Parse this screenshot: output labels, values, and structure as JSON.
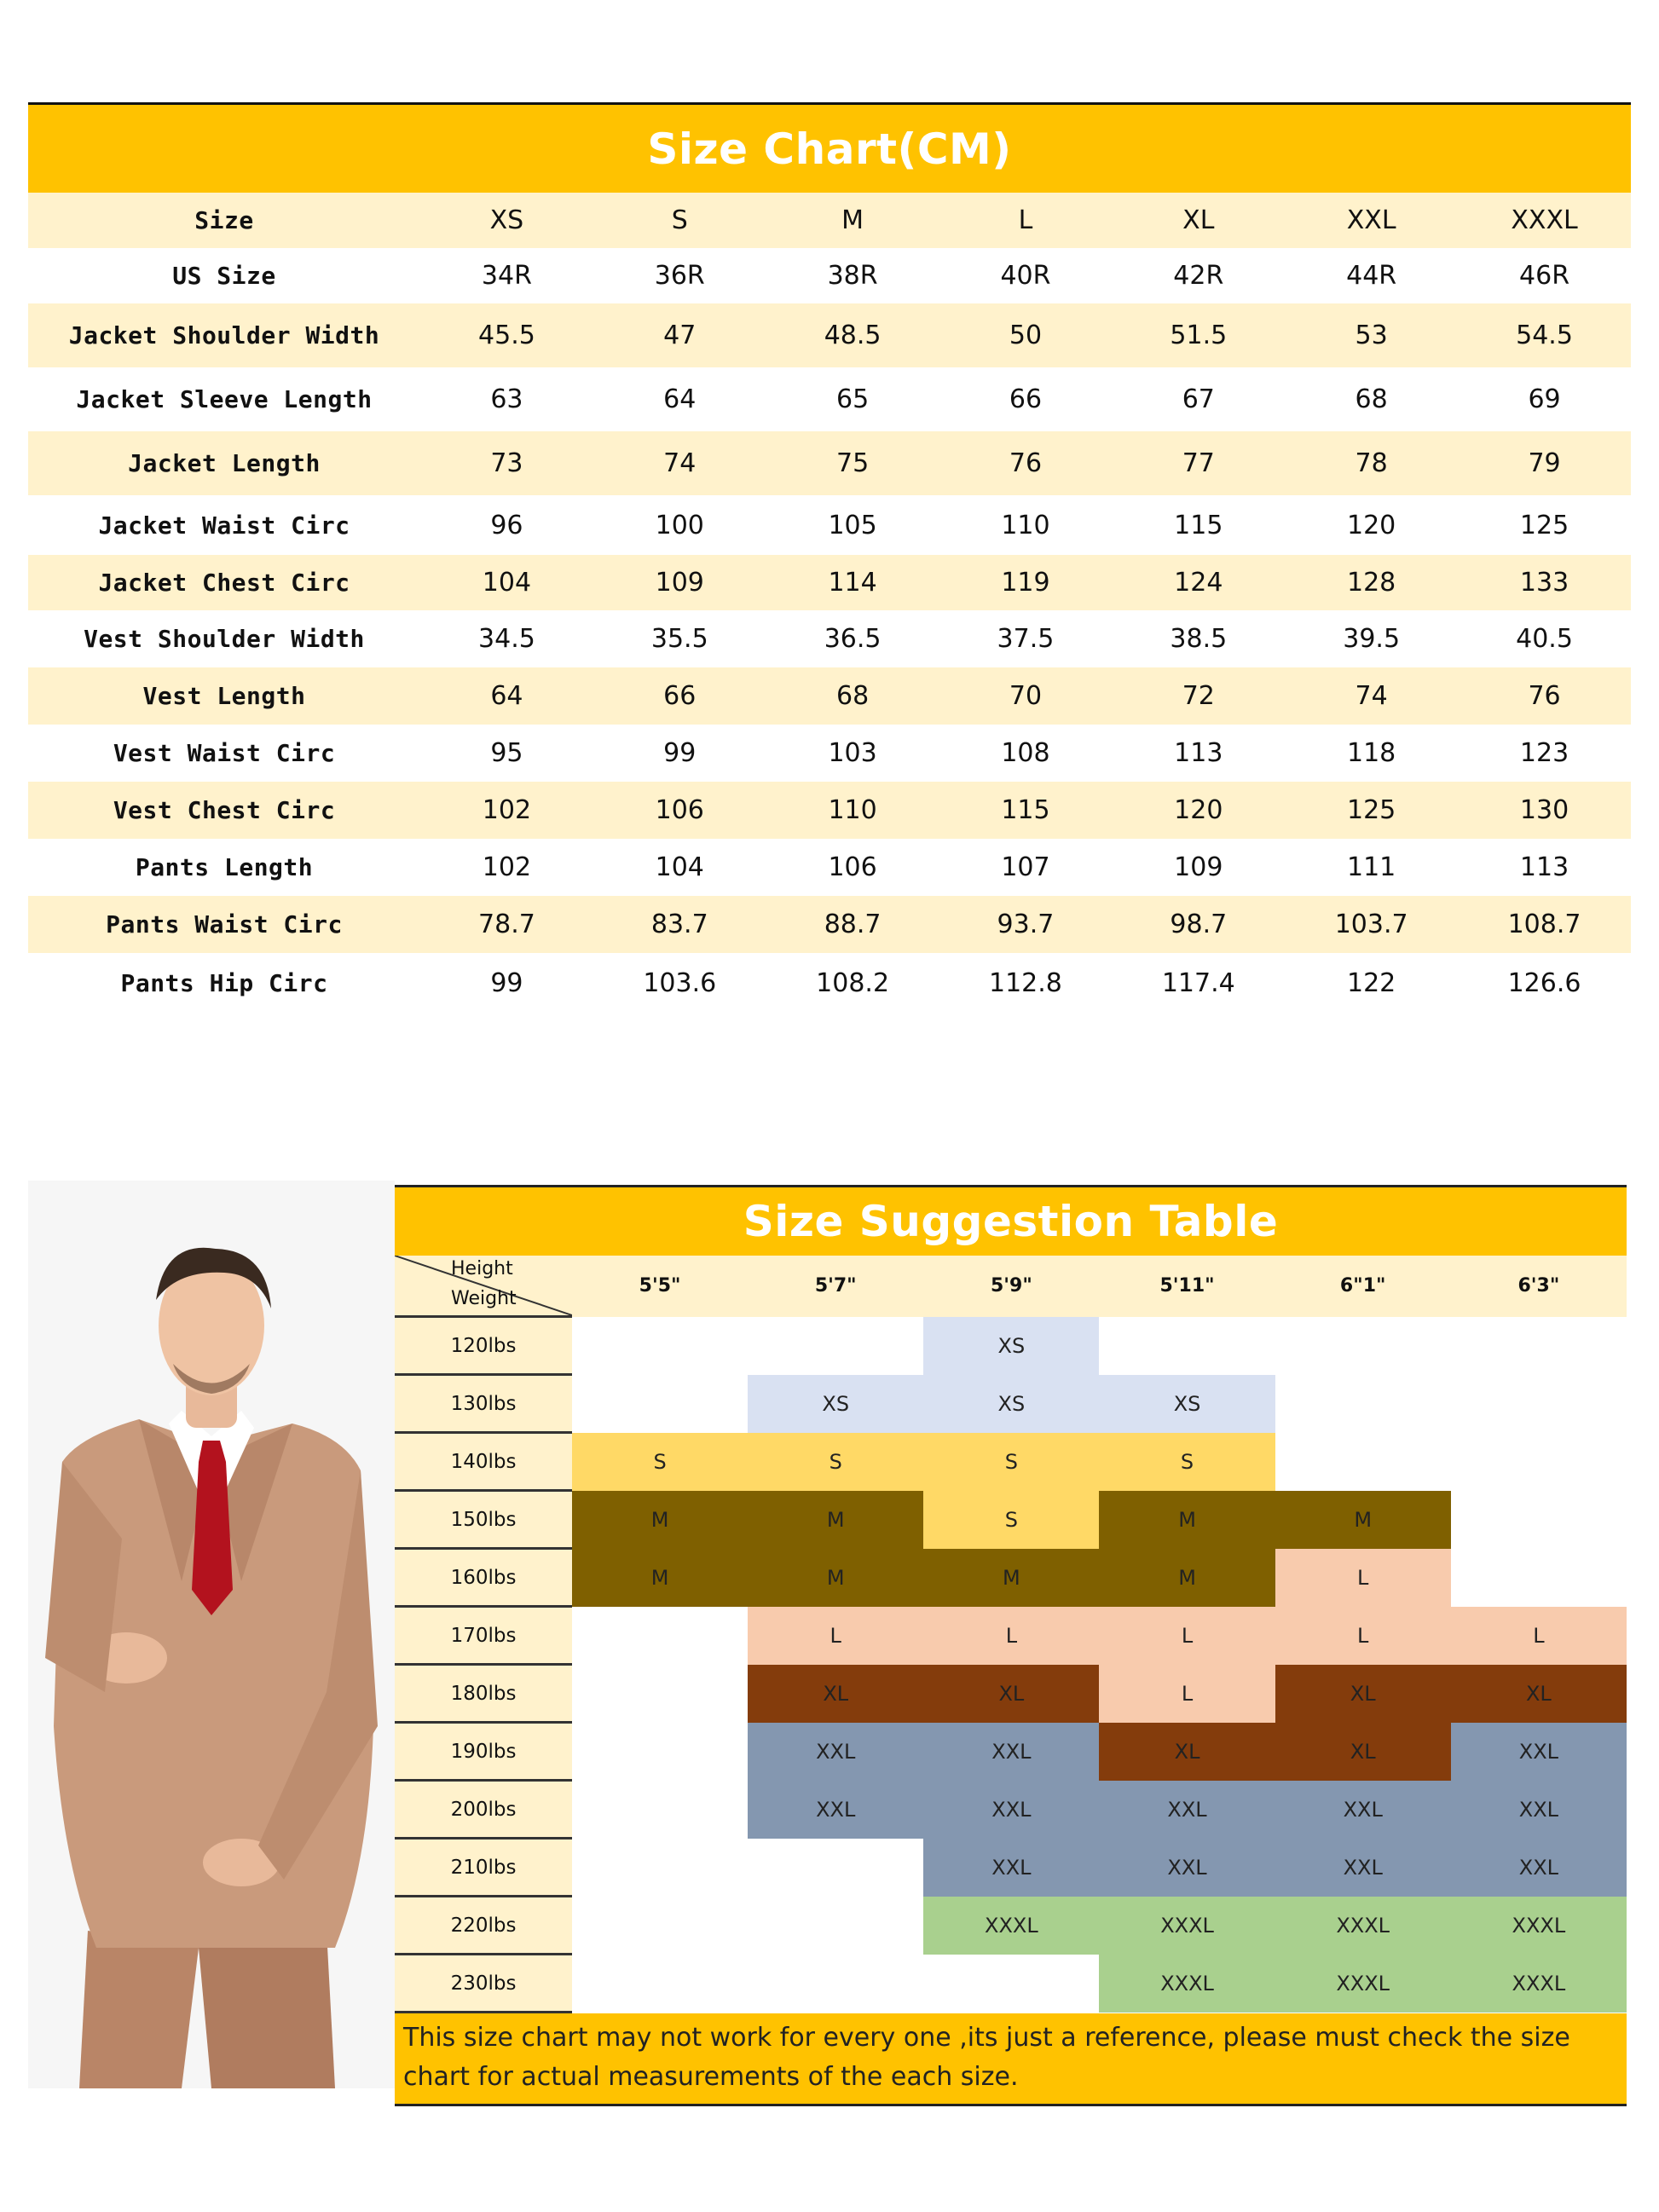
{
  "size_chart": {
    "title": "Size Chart(CM)",
    "header": [
      "Size",
      "XS",
      "S",
      "M",
      "L",
      "XL",
      "XXL",
      "XXXL"
    ],
    "rows": [
      [
        "US Size",
        "34R",
        "36R",
        "38R",
        "40R",
        "42R",
        "44R",
        "46R"
      ],
      [
        "Jacket Shoulder Width",
        "45.5",
        "47",
        "48.5",
        "50",
        "51.5",
        "53",
        "54.5"
      ],
      [
        "Jacket Sleeve Length",
        "63",
        "64",
        "65",
        "66",
        "67",
        "68",
        "69"
      ],
      [
        "Jacket Length",
        "73",
        "74",
        "75",
        "76",
        "77",
        "78",
        "79"
      ],
      [
        "Jacket Waist Circ",
        "96",
        "100",
        "105",
        "110",
        "115",
        "120",
        "125"
      ],
      [
        "Jacket Chest Circ",
        "104",
        "109",
        "114",
        "119",
        "124",
        "128",
        "133"
      ],
      [
        "Vest Shoulder Width",
        "34.5",
        "35.5",
        "36.5",
        "37.5",
        "38.5",
        "39.5",
        "40.5"
      ],
      [
        "Vest Length",
        "64",
        "66",
        "68",
        "70",
        "72",
        "74",
        "76"
      ],
      [
        "Vest Waist Circ",
        "95",
        "99",
        "103",
        "108",
        "113",
        "118",
        "123"
      ],
      [
        "Vest Chest Circ",
        "102",
        "106",
        "110",
        "115",
        "120",
        "125",
        "130"
      ],
      [
        "Pants Length",
        "102",
        "104",
        "106",
        "107",
        "109",
        "111",
        "113"
      ],
      [
        "Pants Waist Circ",
        "78.7",
        "83.7",
        "88.7",
        "93.7",
        "98.7",
        "103.7",
        "108.7"
      ],
      [
        "Pants Hip Circ",
        "99",
        "103.6",
        "108.2",
        "112.8",
        "117.4",
        "122",
        "126.6"
      ]
    ]
  },
  "suggestion": {
    "title": "Size Suggestion Table",
    "corner_height": "Height",
    "corner_weight": "Weight",
    "heights": [
      "5'5\"",
      "5'7\"",
      "5'9\"",
      "5'11\"",
      "6\"1\"",
      "6'3\""
    ],
    "weights": [
      "120lbs",
      "130lbs",
      "140lbs",
      "150lbs",
      "160lbs",
      "170lbs",
      "180lbs",
      "190lbs",
      "200lbs",
      "210lbs",
      "220lbs",
      "230lbs"
    ],
    "grid": [
      [
        "",
        "",
        "XS",
        "",
        "",
        ""
      ],
      [
        "",
        "XS",
        "XS",
        "XS",
        "",
        ""
      ],
      [
        "S",
        "S",
        "S",
        "S",
        "",
        ""
      ],
      [
        "M",
        "M",
        "S",
        "M",
        "M",
        ""
      ],
      [
        "M",
        "M",
        "M",
        "M",
        "L",
        ""
      ],
      [
        "",
        "L",
        "L",
        "L",
        "L",
        "L"
      ],
      [
        "",
        "XL",
        "XL",
        "L",
        "XL",
        "XL"
      ],
      [
        "",
        "XXL",
        "XXL",
        "XL",
        "XL",
        "XXL"
      ],
      [
        "",
        "XXL",
        "XXL",
        "XXL",
        "XXL",
        "XXL"
      ],
      [
        "",
        "",
        "XXL",
        "XXL",
        "XXL",
        "XXL"
      ],
      [
        "",
        "",
        "XXXL",
        "XXXL",
        "XXXL",
        "XXXL"
      ],
      [
        "",
        "",
        "",
        "XXXL",
        "XXXL",
        "XXXL"
      ]
    ],
    "size_colors": {
      "XS": "#d9e1f2",
      "S": "#ffd966",
      "M": "#7f6000",
      "L": "#f8cbad",
      "XL": "#843c0c",
      "XXL": "#8497b0",
      "XXXL": "#a9d08e"
    },
    "note": "This size chart may not work for every one ,its just a reference, please must check the size chart for actual measurements of the each size."
  },
  "colors": {
    "title_band": "#ffc200",
    "alt_row": "#fff2cc"
  }
}
